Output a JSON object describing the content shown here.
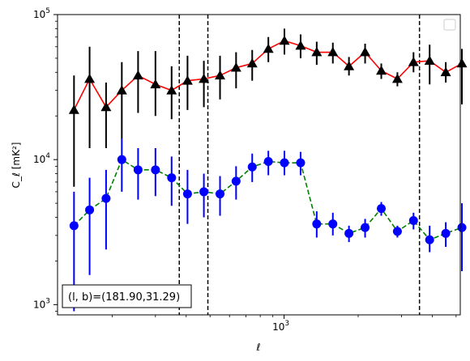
{
  "chart_data": {
    "type": "scatter",
    "xscale": "log",
    "yscale": "log",
    "xlim": [
      120,
      5200
    ],
    "ylim": [
      850,
      100000
    ],
    "xlabel": "ℓ",
    "ylabel": "C_ℓ  [mK²]",
    "x_ticks": [
      {
        "value": 1000,
        "base": "10",
        "exp": "3"
      }
    ],
    "y_ticks": [
      {
        "value": 1000,
        "base": "10",
        "exp": "3"
      },
      {
        "value": 10000,
        "base": "10",
        "exp": "4"
      },
      {
        "value": 100000,
        "base": "10",
        "exp": "5"
      }
    ],
    "grid": false,
    "legend": "top-right (empty box)",
    "annotation": "(l, b)=(181.90,31.29)",
    "vlines": [
      375,
      490,
      3550
    ],
    "series": [
      {
        "marker": "triangle",
        "marker_color": "#000000",
        "line_color": "#ff0000",
        "line_style": "solid",
        "errorbar_color": "#000000",
        "points": [
          {
            "x": 140,
            "y": 22000,
            "lo": 6500,
            "hi": 38000
          },
          {
            "x": 162,
            "y": 36000,
            "lo": 12000,
            "hi": 60000
          },
          {
            "x": 189,
            "y": 23000,
            "lo": 12000,
            "hi": 34000
          },
          {
            "x": 219,
            "y": 30000,
            "lo": 14000,
            "hi": 47000
          },
          {
            "x": 255,
            "y": 38000,
            "lo": 21000,
            "hi": 56000
          },
          {
            "x": 300,
            "y": 33000,
            "lo": 20000,
            "hi": 56000
          },
          {
            "x": 349,
            "y": 30000,
            "lo": 19000,
            "hi": 44000
          },
          {
            "x": 405,
            "y": 35000,
            "lo": 22000,
            "hi": 52000
          },
          {
            "x": 472,
            "y": 36000,
            "lo": 23000,
            "hi": 48000
          },
          {
            "x": 549,
            "y": 38000,
            "lo": 26000,
            "hi": 52000
          },
          {
            "x": 638,
            "y": 43000,
            "lo": 31000,
            "hi": 55000
          },
          {
            "x": 742,
            "y": 46000,
            "lo": 35000,
            "hi": 57000
          },
          {
            "x": 863,
            "y": 58000,
            "lo": 47000,
            "hi": 70000
          },
          {
            "x": 1003,
            "y": 66000,
            "lo": 53000,
            "hi": 80000
          },
          {
            "x": 1167,
            "y": 61000,
            "lo": 50000,
            "hi": 73000
          },
          {
            "x": 1357,
            "y": 55000,
            "lo": 45000,
            "hi": 65000
          },
          {
            "x": 1578,
            "y": 55000,
            "lo": 46000,
            "hi": 64000
          },
          {
            "x": 1835,
            "y": 44000,
            "lo": 38000,
            "hi": 51000
          },
          {
            "x": 2134,
            "y": 55000,
            "lo": 46000,
            "hi": 63000
          },
          {
            "x": 2483,
            "y": 41000,
            "lo": 36000,
            "hi": 46000
          },
          {
            "x": 2887,
            "y": 36000,
            "lo": 32000,
            "hi": 40000
          },
          {
            "x": 3357,
            "y": 47000,
            "lo": 40000,
            "hi": 55000
          },
          {
            "x": 3904,
            "y": 48000,
            "lo": 33000,
            "hi": 62000
          },
          {
            "x": 4540,
            "y": 40000,
            "lo": 34000,
            "hi": 47000
          },
          {
            "x": 5280,
            "y": 46000,
            "lo": 24000,
            "hi": 58000
          }
        ]
      },
      {
        "marker": "circle",
        "marker_color": "#0000ff",
        "line_color": "#008000",
        "line_style": "dashed",
        "errorbar_color": "#0000ff",
        "points": [
          {
            "x": 140,
            "y": 3500,
            "lo": 900,
            "hi": 6000
          },
          {
            "x": 162,
            "y": 4500,
            "lo": 1600,
            "hi": 7500
          },
          {
            "x": 189,
            "y": 5400,
            "lo": 2400,
            "hi": 8500
          },
          {
            "x": 219,
            "y": 10000,
            "lo": 6000,
            "hi": 14000
          },
          {
            "x": 255,
            "y": 8500,
            "lo": 5300,
            "hi": 12000
          },
          {
            "x": 300,
            "y": 8500,
            "lo": 5600,
            "hi": 12000
          },
          {
            "x": 349,
            "y": 7500,
            "lo": 4800,
            "hi": 10500
          },
          {
            "x": 405,
            "y": 5800,
            "lo": 3600,
            "hi": 8500
          },
          {
            "x": 472,
            "y": 6000,
            "lo": 4000,
            "hi": 8000
          },
          {
            "x": 549,
            "y": 5800,
            "lo": 4100,
            "hi": 7700
          },
          {
            "x": 638,
            "y": 7100,
            "lo": 5300,
            "hi": 9000
          },
          {
            "x": 742,
            "y": 8900,
            "lo": 7000,
            "hi": 11000
          },
          {
            "x": 863,
            "y": 9700,
            "lo": 7800,
            "hi": 11500
          },
          {
            "x": 1003,
            "y": 9500,
            "lo": 7800,
            "hi": 11500
          },
          {
            "x": 1167,
            "y": 9500,
            "lo": 7800,
            "hi": 11300
          },
          {
            "x": 1357,
            "y": 3600,
            "lo": 2900,
            "hi": 4400
          },
          {
            "x": 1578,
            "y": 3600,
            "lo": 3000,
            "hi": 4300
          },
          {
            "x": 1835,
            "y": 3100,
            "lo": 2700,
            "hi": 3500
          },
          {
            "x": 2134,
            "y": 3400,
            "lo": 2900,
            "hi": 3900
          },
          {
            "x": 2483,
            "y": 4600,
            "lo": 4100,
            "hi": 5100
          },
          {
            "x": 2887,
            "y": 3200,
            "lo": 2900,
            "hi": 3500
          },
          {
            "x": 3357,
            "y": 3800,
            "lo": 3300,
            "hi": 4300
          },
          {
            "x": 3904,
            "y": 2800,
            "lo": 2300,
            "hi": 3500
          },
          {
            "x": 4540,
            "y": 3100,
            "lo": 2500,
            "hi": 3700
          },
          {
            "x": 5280,
            "y": 3400,
            "lo": 1700,
            "hi": 5000
          }
        ]
      }
    ]
  }
}
